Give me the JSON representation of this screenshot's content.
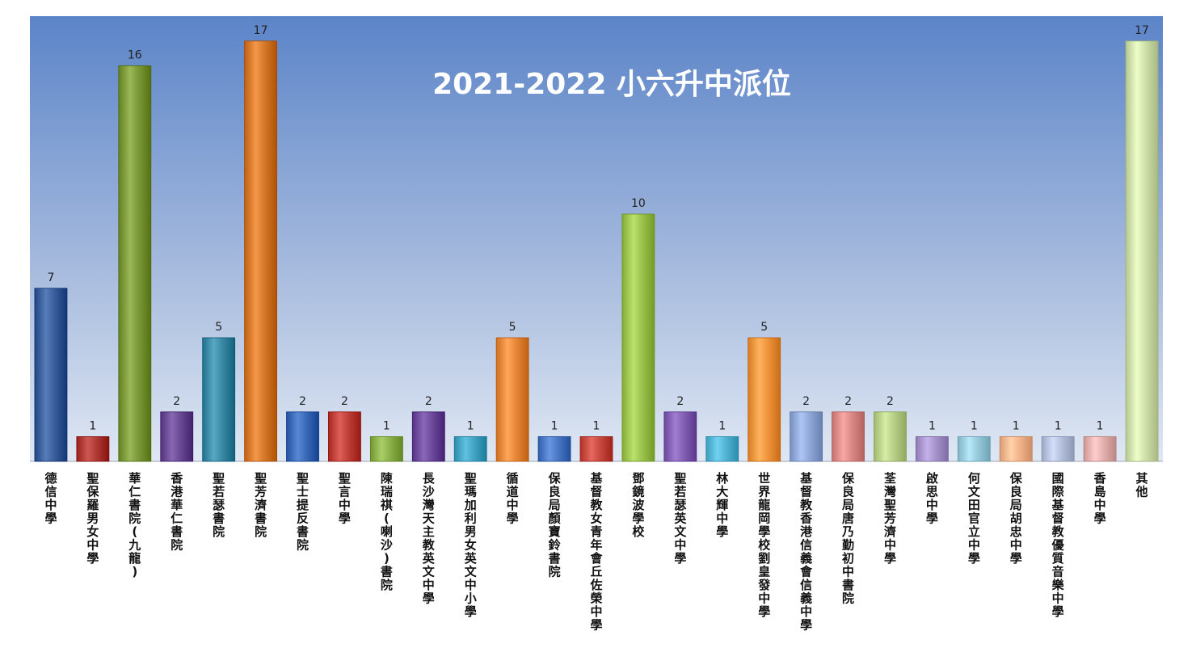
{
  "chart_data": {
    "type": "bar",
    "title": "2021-2022 小六升中派位",
    "xlabel": "",
    "ylabel": "",
    "ylim": [
      0,
      18
    ],
    "grid": false,
    "legend": "none",
    "categories": [
      "德信中學",
      "聖保羅男女中學",
      "華仁書院(九龍)",
      "香港華仁書院",
      "聖若瑟書院",
      "聖芳濟書院",
      "聖士提反書院",
      "聖言中學",
      "陳瑞祺(喇沙)書院",
      "長沙灣天主教英文中學",
      "聖瑪加利男女英文中小學",
      "循道中學",
      "保良局顏寶鈴書院",
      "基督教女青年會丘佐榮中學",
      "鄧鏡波學校",
      "聖若瑟英文中學",
      "林大輝中學",
      "世界龍岡學校劉皇發中學",
      "基督教香港信義會信義中學",
      "保良局唐乃勤初中書院",
      "荃灣聖芳濟中學",
      "啟思中學",
      "何文田官立中學",
      "保良局胡忠中學",
      "國際基督教優質音樂中學",
      "香島中學",
      "其他"
    ],
    "values": [
      7,
      1,
      16,
      2,
      5,
      17,
      2,
      2,
      1,
      2,
      1,
      5,
      1,
      1,
      10,
      2,
      1,
      5,
      2,
      2,
      2,
      1,
      1,
      1,
      1,
      1,
      17
    ],
    "colors": [
      "#3a5f9c",
      "#b03a35",
      "#7c9a3a",
      "#6a4a94",
      "#3a8aa6",
      "#d87a2c",
      "#3a6ab8",
      "#c0403a",
      "#8cb04a",
      "#6e4a9c",
      "#44a4c4",
      "#e8883a",
      "#4a78c4",
      "#c84a40",
      "#9cc44e",
      "#8460b4",
      "#54b4d4",
      "#f0943e",
      "#90a8d8",
      "#dc8a88",
      "#b8d088",
      "#a894cc",
      "#98ccdc",
      "#f4b48c",
      "#b4c0dc",
      "#e4b0ae",
      "#cfe0ab"
    ]
  }
}
